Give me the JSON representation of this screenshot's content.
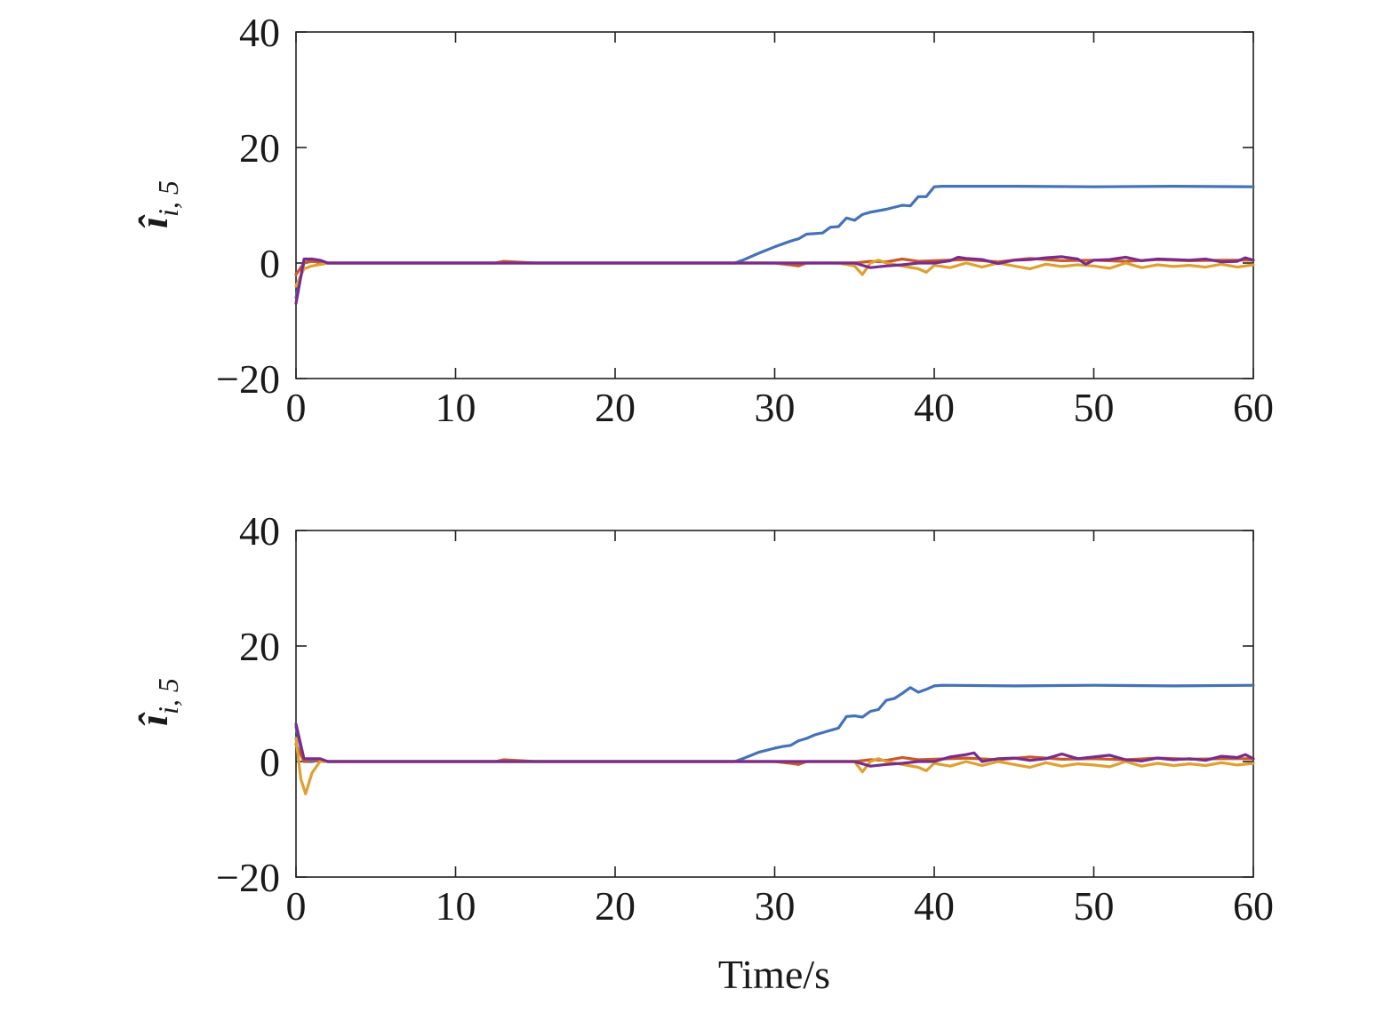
{
  "chart_data": [
    {
      "type": "line",
      "ylabel": {
        "symbol": "î",
        "subscript": "i, 5"
      },
      "xlabel": "",
      "xlim": [
        0,
        60
      ],
      "ylim": [
        -20,
        40
      ],
      "xticks": [
        0,
        10,
        20,
        30,
        40,
        50,
        60
      ],
      "yticks": [
        -20,
        0,
        20,
        40
      ],
      "ytick_labels": [
        "−20",
        "0",
        "20",
        "40"
      ],
      "grid": false,
      "series": [
        {
          "color": "#4472b8",
          "x": [
            0,
            0.5,
            1,
            1.5,
            2,
            5,
            10,
            15,
            20,
            25,
            27.5,
            28,
            29,
            30,
            31,
            31.5,
            32,
            32.5,
            33,
            33.5,
            34,
            34.5,
            35,
            35.5,
            36,
            37,
            38,
            38.5,
            39,
            39.5,
            40,
            40.5,
            45,
            50,
            55,
            60
          ],
          "y": [
            -6,
            0,
            0.5,
            0,
            0,
            0,
            0,
            0,
            0,
            0,
            0,
            0.5,
            1.7,
            2.8,
            3.8,
            4.2,
            5,
            5.1,
            5.2,
            6.2,
            6.3,
            7.8,
            7.4,
            8.4,
            8.8,
            9.3,
            10,
            9.9,
            11.5,
            11.5,
            13.2,
            13.3,
            13.3,
            13.2,
            13.3,
            13.2
          ]
        },
        {
          "color": "#c85a28",
          "x": [
            0,
            0.5,
            1,
            2,
            5,
            10,
            12.5,
            13,
            15,
            20,
            25,
            30,
            31,
            31.5,
            32,
            35,
            36,
            37,
            38,
            39,
            40,
            42,
            44,
            46,
            48,
            50,
            52,
            54,
            56,
            58,
            60
          ],
          "y": [
            -2,
            0,
            0.3,
            0,
            0,
            0,
            0,
            0.3,
            0,
            0,
            0,
            0,
            -0.3,
            -0.5,
            0,
            0,
            0.3,
            0.2,
            0.7,
            0.3,
            0.4,
            0.6,
            0.2,
            0.8,
            0.4,
            0.5,
            0.3,
            0.6,
            0.4,
            0.5,
            0.5
          ]
        },
        {
          "color": "#e0a030",
          "x": [
            0,
            0.5,
            1,
            2,
            5,
            10,
            15,
            20,
            25,
            30,
            34,
            35,
            35.5,
            36,
            36.5,
            37,
            38,
            39,
            39.5,
            40,
            41,
            42,
            43,
            44,
            45,
            46,
            47,
            48,
            49,
            50,
            51,
            52,
            53,
            54,
            55,
            56,
            57,
            58,
            59,
            60
          ],
          "y": [
            -4,
            -1,
            -0.5,
            0,
            0,
            0,
            0,
            0,
            0,
            0,
            0,
            -0.5,
            -2,
            0,
            0.5,
            0,
            -0.5,
            -1,
            -1.6,
            -0.4,
            -0.8,
            0,
            -0.7,
            0,
            -0.5,
            -1,
            -0.2,
            -0.6,
            -0.3,
            -0.5,
            -0.9,
            0,
            -0.8,
            -0.3,
            -0.6,
            -0.4,
            -0.7,
            -0.2,
            -0.7,
            -0.3
          ]
        },
        {
          "color": "#7a2b8e",
          "x": [
            0,
            0.5,
            1,
            1.5,
            2,
            5,
            10,
            15,
            20,
            25,
            30,
            35,
            36,
            37,
            38,
            39,
            40,
            41,
            41.5,
            42,
            43,
            44,
            45,
            46,
            47,
            48,
            49,
            49.5,
            50,
            51,
            52,
            53,
            54,
            55,
            56,
            57,
            58,
            59,
            59.5,
            60
          ],
          "y": [
            -7,
            0.7,
            0.7,
            0.5,
            0,
            0,
            0,
            0,
            0,
            0,
            0,
            0,
            -0.8,
            -0.5,
            -0.3,
            0,
            0,
            0.4,
            1,
            0.8,
            0.6,
            -0.1,
            0.5,
            0.6,
            0.9,
            1.1,
            0.7,
            -0.2,
            0.5,
            0.6,
            1,
            0.4,
            0.7,
            0.6,
            0.5,
            0.7,
            0.2,
            0.3,
            0.9,
            0.5
          ]
        }
      ]
    },
    {
      "type": "line",
      "ylabel": {
        "symbol": "î",
        "subscript": "i, 5"
      },
      "xlabel": "Time/s",
      "xlim": [
        0,
        60
      ],
      "ylim": [
        -20,
        40
      ],
      "xticks": [
        0,
        10,
        20,
        30,
        40,
        50,
        60
      ],
      "yticks": [
        -20,
        0,
        20,
        40
      ],
      "ytick_labels": [
        "−20",
        "0",
        "20",
        "40"
      ],
      "grid": false,
      "series": [
        {
          "color": "#4472b8",
          "x": [
            0,
            0.5,
            1,
            1.5,
            2,
            5,
            10,
            15,
            20,
            25,
            27.5,
            28,
            29,
            30,
            30.5,
            31,
            31.5,
            32,
            32.5,
            33,
            34,
            34.5,
            35,
            35.5,
            36,
            36.5,
            37,
            37.5,
            38,
            38.5,
            39,
            39.5,
            40,
            40.5,
            45,
            50,
            55,
            60
          ],
          "y": [
            6,
            0,
            0,
            0.2,
            0,
            0,
            0,
            0,
            0,
            0,
            0,
            0.5,
            1.6,
            2.3,
            2.6,
            2.8,
            3.6,
            4,
            4.6,
            5,
            5.8,
            7.8,
            7.9,
            7.7,
            8.7,
            9,
            10.6,
            10.9,
            11.8,
            12.8,
            12,
            12.5,
            13.1,
            13.2,
            13.1,
            13.2,
            13.1,
            13.2
          ]
        },
        {
          "color": "#c85a28",
          "x": [
            0,
            0.5,
            1,
            2,
            5,
            10,
            12.5,
            13,
            15,
            20,
            25,
            30,
            31,
            31.5,
            32,
            35,
            36,
            37,
            38,
            39,
            40,
            42,
            44,
            46,
            48,
            50,
            52,
            54,
            56,
            58,
            60
          ],
          "y": [
            3,
            0,
            0.3,
            0,
            0,
            0,
            0,
            0.3,
            0,
            0,
            0,
            0,
            -0.3,
            -0.5,
            0,
            0,
            0.3,
            0.2,
            0.7,
            0.3,
            0.4,
            0.6,
            0.3,
            0.8,
            0.4,
            0.5,
            0.3,
            0.6,
            0.4,
            0.5,
            0.5
          ]
        },
        {
          "color": "#e0a030",
          "x": [
            0,
            0.3,
            0.6,
            1,
            1.5,
            2,
            5,
            10,
            15,
            20,
            25,
            30,
            35,
            35.5,
            36,
            36.5,
            37,
            38,
            39,
            39.5,
            40,
            41,
            42,
            43,
            44,
            45,
            46,
            47,
            48,
            49,
            50,
            51,
            52,
            53,
            54,
            55,
            56,
            57,
            58,
            59,
            60
          ],
          "y": [
            4,
            -3,
            -5.6,
            -2,
            0,
            0,
            0,
            0,
            0,
            0,
            0,
            0,
            0,
            -1.8,
            0,
            0.5,
            0,
            -0.5,
            -1,
            -1.6,
            -0.3,
            -0.8,
            0,
            -0.7,
            0,
            -0.5,
            -1,
            -0.2,
            -0.8,
            -0.4,
            -0.6,
            -0.9,
            0,
            -0.8,
            -0.3,
            -0.7,
            -0.4,
            -0.7,
            -0.2,
            -0.6,
            -0.3
          ]
        },
        {
          "color": "#7a2b8e",
          "x": [
            0,
            0.5,
            1,
            1.5,
            2,
            5,
            10,
            15,
            20,
            25,
            30,
            35,
            36,
            37,
            38,
            39,
            40,
            41,
            42,
            42.5,
            43,
            44,
            45,
            46,
            47,
            48,
            49,
            50,
            51,
            52,
            53,
            54,
            55,
            56,
            57,
            58,
            59,
            59.5,
            60
          ],
          "y": [
            6.5,
            0.5,
            0.5,
            0.5,
            0,
            0,
            0,
            0,
            0,
            0,
            0,
            0,
            -0.8,
            -0.5,
            -0.3,
            0,
            0,
            0.8,
            1.2,
            1.5,
            0,
            0.5,
            0.6,
            0.2,
            0.5,
            1.3,
            0.5,
            0.8,
            1.1,
            0.3,
            0.1,
            0.6,
            0.3,
            0.5,
            0.2,
            0.9,
            0.7,
            1.2,
            0.5
          ]
        }
      ]
    }
  ]
}
